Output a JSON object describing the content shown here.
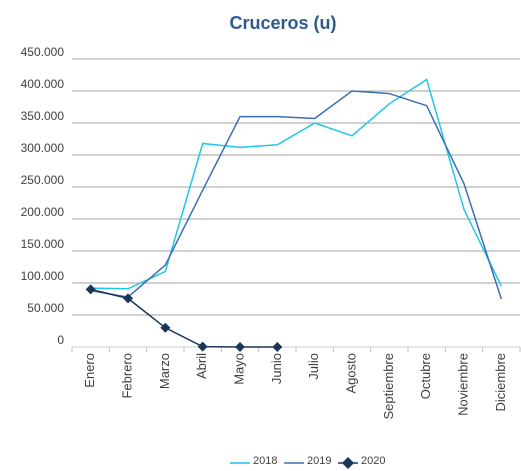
{
  "chart_data": {
    "type": "line",
    "title": "Cruceros (u)",
    "categories": [
      "Enero",
      "Febrero",
      "Marzo",
      "Abril",
      "Mayo",
      "Junio",
      "Julio",
      "Agosto",
      "Septiembre",
      "Octubre",
      "Noviembre",
      "Diciembre"
    ],
    "series": [
      {
        "name": "2018",
        "color": "#1fc8e8",
        "values": [
          92000,
          91000,
          118000,
          318000,
          312000,
          316000,
          350000,
          330000,
          380000,
          418000,
          215000,
          95000
        ]
      },
      {
        "name": "2019",
        "color": "#3a6fb7",
        "values": [
          88000,
          78000,
          128000,
          245000,
          360000,
          360000,
          357000,
          400000,
          396000,
          377000,
          255000,
          75000
        ]
      },
      {
        "name": "2020",
        "color": "#1b3556",
        "marker": "diamond",
        "values": [
          90000,
          76000,
          30000,
          500,
          0,
          0,
          null,
          null,
          null,
          null,
          null,
          null
        ]
      }
    ],
    "ylim": [
      0,
      450000
    ],
    "yticks": [
      0,
      {
        "value": 50000,
        "label": "50.000"
      },
      {
        "value": 100000,
        "label": "100.000"
      },
      {
        "value": 150000,
        "label": "150.000"
      },
      {
        "value": 200000,
        "label": "200.000"
      },
      {
        "value": 250000,
        "label": "250.000"
      },
      {
        "value": 300000,
        "label": "300.000"
      },
      {
        "value": 350000,
        "label": "350.000"
      },
      {
        "value": 400000,
        "label": "400.000"
      },
      {
        "value": 450000,
        "label": "450.000"
      }
    ],
    "grid": true,
    "legend": "bottom"
  }
}
